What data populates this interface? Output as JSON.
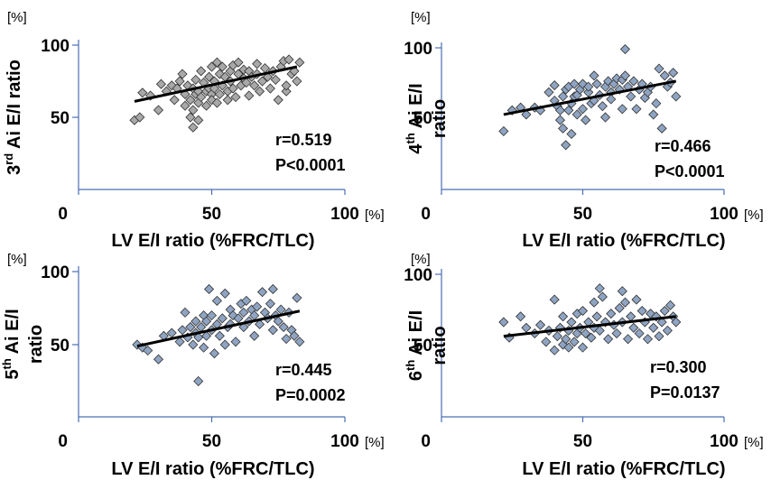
{
  "chart_data": [
    {
      "type": "scatter",
      "ylabel_main": "3",
      "ylabel_sup": "rd",
      "ylabel_rest": " Ai E/I ratio",
      "xlabel": "LV E/I ratio (%FRC/TLC)",
      "x_unit": "[%]",
      "y_unit": "[%]",
      "xlim": [
        0,
        100
      ],
      "ylim": [
        0,
        100
      ],
      "x_ticks": [
        0,
        50,
        100
      ],
      "y_ticks": [
        50,
        100
      ],
      "stat_r": "r=0.519",
      "stat_p": "P<0.0001",
      "marker_color": "#a8a8a8",
      "trend": [
        [
          21,
          61
        ],
        [
          82,
          85
        ]
      ],
      "points": [
        [
          21,
          48
        ],
        [
          23,
          50
        ],
        [
          24,
          67
        ],
        [
          27,
          65
        ],
        [
          30,
          55
        ],
        [
          31,
          73
        ],
        [
          33,
          68
        ],
        [
          35,
          72
        ],
        [
          36,
          62
        ],
        [
          37,
          70
        ],
        [
          38,
          75
        ],
        [
          39,
          80
        ],
        [
          40,
          66
        ],
        [
          40,
          58
        ],
        [
          41,
          72
        ],
        [
          42,
          62
        ],
        [
          42,
          50
        ],
        [
          43,
          55
        ],
        [
          43,
          70
        ],
        [
          43,
          43
        ],
        [
          44,
          66
        ],
        [
          44,
          76
        ],
        [
          45,
          68
        ],
        [
          45,
          48
        ],
        [
          45,
          60
        ],
        [
          46,
          64
        ],
        [
          46,
          82
        ],
        [
          47,
          74
        ],
        [
          48,
          68
        ],
        [
          48,
          58
        ],
        [
          49,
          70
        ],
        [
          49,
          78
        ],
        [
          50,
          66
        ],
        [
          50,
          85
        ],
        [
          50,
          62
        ],
        [
          51,
          70
        ],
        [
          51,
          75
        ],
        [
          52,
          88
        ],
        [
          52,
          60
        ],
        [
          53,
          80
        ],
        [
          53,
          66
        ],
        [
          54,
          72
        ],
        [
          54,
          85
        ],
        [
          55,
          78
        ],
        [
          56,
          68
        ],
        [
          56,
          62
        ],
        [
          57,
          82
        ],
        [
          57,
          75
        ],
        [
          58,
          86
        ],
        [
          58,
          70
        ],
        [
          59,
          64
        ],
        [
          60,
          80
        ],
        [
          60,
          88
        ],
        [
          61,
          72
        ],
        [
          62,
          77
        ],
        [
          62,
          83
        ],
        [
          63,
          74
        ],
        [
          64,
          65
        ],
        [
          64,
          82
        ],
        [
          65,
          78
        ],
        [
          66,
          72
        ],
        [
          67,
          87
        ],
        [
          67,
          80
        ],
        [
          68,
          68
        ],
        [
          69,
          75
        ],
        [
          70,
          84
        ],
        [
          71,
          78
        ],
        [
          72,
          70
        ],
        [
          73,
          82
        ],
        [
          74,
          76
        ],
        [
          75,
          62
        ],
        [
          76,
          85
        ],
        [
          77,
          89
        ],
        [
          78,
          68
        ],
        [
          78,
          72
        ],
        [
          79,
          90
        ],
        [
          80,
          80
        ],
        [
          81,
          82
        ],
        [
          82,
          75
        ],
        [
          83,
          88
        ]
      ]
    },
    {
      "type": "scatter",
      "ylabel_main": "4",
      "ylabel_sup": "th",
      "ylabel_rest": " Ai E/I",
      "ylabel_line2": "ratio",
      "xlabel": "LV E/I ratio (%FRC/TLC)",
      "x_unit": "[%]",
      "y_unit": "[%]",
      "xlim": [
        0,
        100
      ],
      "ylim": [
        0,
        100
      ],
      "x_ticks": [
        0,
        50,
        100
      ],
      "y_ticks": [
        50,
        100
      ],
      "stat_r": "r=0.466",
      "stat_p": "P<0.0001",
      "marker_color": "#8fa4c2",
      "trend": [
        [
          22,
          52
        ],
        [
          83,
          76
        ]
      ],
      "points": [
        [
          22,
          40
        ],
        [
          25,
          55
        ],
        [
          28,
          57
        ],
        [
          30,
          52
        ],
        [
          33,
          57
        ],
        [
          35,
          55
        ],
        [
          38,
          68
        ],
        [
          40,
          73
        ],
        [
          40,
          62
        ],
        [
          41,
          58
        ],
        [
          42,
          55
        ],
        [
          42,
          48
        ],
        [
          43,
          65
        ],
        [
          43,
          42
        ],
        [
          44,
          70
        ],
        [
          44,
          30
        ],
        [
          45,
          72
        ],
        [
          45,
          55
        ],
        [
          46,
          60
        ],
        [
          46,
          38
        ],
        [
          47,
          74
        ],
        [
          47,
          65
        ],
        [
          48,
          52
        ],
        [
          48,
          66
        ],
        [
          49,
          70
        ],
        [
          50,
          56
        ],
        [
          50,
          74
        ],
        [
          51,
          48
        ],
        [
          52,
          68
        ],
        [
          52,
          72
        ],
        [
          53,
          60
        ],
        [
          54,
          62
        ],
        [
          54,
          80
        ],
        [
          55,
          74
        ],
        [
          56,
          66
        ],
        [
          57,
          58
        ],
        [
          58,
          72
        ],
        [
          58,
          50
        ],
        [
          59,
          76
        ],
        [
          60,
          68
        ],
        [
          60,
          63
        ],
        [
          61,
          74
        ],
        [
          62,
          78
        ],
        [
          63,
          70
        ],
        [
          64,
          56
        ],
        [
          64,
          77
        ],
        [
          65,
          99
        ],
        [
          65,
          80
        ],
        [
          66,
          72
        ],
        [
          67,
          65
        ],
        [
          68,
          76
        ],
        [
          69,
          56
        ],
        [
          70,
          70
        ],
        [
          71,
          74
        ],
        [
          72,
          64
        ],
        [
          73,
          68
        ],
        [
          74,
          72
        ],
        [
          75,
          52
        ],
        [
          76,
          60
        ],
        [
          77,
          85
        ],
        [
          78,
          42
        ],
        [
          79,
          80
        ],
        [
          80,
          72
        ],
        [
          81,
          75
        ],
        [
          82,
          82
        ],
        [
          83,
          65
        ]
      ]
    },
    {
      "type": "scatter",
      "ylabel_main": "5",
      "ylabel_sup": "th",
      "ylabel_rest": " Ai E/I",
      "ylabel_line2": "ratio",
      "xlabel": "LV E/I ratio (%FRC/TLC)",
      "x_unit": "[%]",
      "y_unit": "[%]",
      "xlim": [
        0,
        100
      ],
      "ylim": [
        0,
        100
      ],
      "x_ticks": [
        0,
        50,
        100
      ],
      "y_ticks": [
        50,
        100
      ],
      "stat_r": "r=0.445",
      "stat_p": "P=0.0002",
      "marker_color": "#8fa4c2",
      "trend": [
        [
          22,
          49
        ],
        [
          83,
          73
        ]
      ],
      "points": [
        [
          22,
          50
        ],
        [
          24,
          48
        ],
        [
          26,
          46
        ],
        [
          30,
          40
        ],
        [
          32,
          56
        ],
        [
          35,
          58
        ],
        [
          38,
          52
        ],
        [
          39,
          60
        ],
        [
          40,
          72
        ],
        [
          41,
          55
        ],
        [
          42,
          62
        ],
        [
          43,
          50
        ],
        [
          44,
          66
        ],
        [
          44,
          58
        ],
        [
          45,
          25
        ],
        [
          45,
          55
        ],
        [
          46,
          62
        ],
        [
          47,
          70
        ],
        [
          47,
          48
        ],
        [
          48,
          66
        ],
        [
          48,
          56
        ],
        [
          49,
          88
        ],
        [
          50,
          60
        ],
        [
          50,
          70
        ],
        [
          51,
          44
        ],
        [
          52,
          64
        ],
        [
          52,
          80
        ],
        [
          53,
          56
        ],
        [
          54,
          68
        ],
        [
          55,
          50
        ],
        [
          55,
          85
        ],
        [
          56,
          62
        ],
        [
          57,
          74
        ],
        [
          57,
          64
        ],
        [
          58,
          70
        ],
        [
          59,
          52
        ],
        [
          60,
          68
        ],
        [
          61,
          78
        ],
        [
          62,
          62
        ],
        [
          62,
          72
        ],
        [
          63,
          80
        ],
        [
          64,
          66
        ],
        [
          65,
          74
        ],
        [
          66,
          56
        ],
        [
          66,
          70
        ],
        [
          67,
          76
        ],
        [
          68,
          64
        ],
        [
          69,
          86
        ],
        [
          70,
          72
        ],
        [
          71,
          68
        ],
        [
          72,
          78
        ],
        [
          73,
          60
        ],
        [
          73,
          88
        ],
        [
          74,
          70
        ],
        [
          75,
          66
        ],
        [
          76,
          74
        ],
        [
          77,
          62
        ],
        [
          78,
          54
        ],
        [
          79,
          72
        ],
        [
          80,
          60
        ],
        [
          81,
          56
        ],
        [
          82,
          82
        ],
        [
          83,
          52
        ]
      ]
    },
    {
      "type": "scatter",
      "ylabel_main": "6",
      "ylabel_sup": "th",
      "ylabel_rest": " Ai E/I",
      "ylabel_line2": "ratio",
      "xlabel": "LV E/I ratio (%FRC/TLC)",
      "x_unit": "[%]",
      "y_unit": "[%]",
      "xlim": [
        0,
        100
      ],
      "ylim": [
        0,
        100
      ],
      "x_ticks": [
        0,
        50,
        100
      ],
      "y_ticks": [
        50,
        100
      ],
      "stat_r": "r=0.300",
      "stat_p": "P=0.0137",
      "marker_color": "#8fa4c2",
      "trend": [
        [
          22,
          56
        ],
        [
          83,
          70
        ]
      ],
      "points": [
        [
          22,
          66
        ],
        [
          24,
          55
        ],
        [
          28,
          70
        ],
        [
          30,
          62
        ],
        [
          33,
          58
        ],
        [
          35,
          64
        ],
        [
          37,
          52
        ],
        [
          38,
          60
        ],
        [
          40,
          82
        ],
        [
          40,
          46
        ],
        [
          41,
          56
        ],
        [
          42,
          62
        ],
        [
          43,
          50
        ],
        [
          43,
          70
        ],
        [
          44,
          54
        ],
        [
          45,
          48
        ],
        [
          45,
          60
        ],
        [
          46,
          66
        ],
        [
          47,
          52
        ],
        [
          48,
          58
        ],
        [
          48,
          72
        ],
        [
          49,
          62
        ],
        [
          50,
          48
        ],
        [
          50,
          74
        ],
        [
          51,
          58
        ],
        [
          52,
          66
        ],
        [
          53,
          55
        ],
        [
          54,
          80
        ],
        [
          54,
          62
        ],
        [
          55,
          70
        ],
        [
          56,
          90
        ],
        [
          56,
          60
        ],
        [
          57,
          84
        ],
        [
          58,
          66
        ],
        [
          59,
          54
        ],
        [
          60,
          72
        ],
        [
          61,
          64
        ],
        [
          62,
          58
        ],
        [
          63,
          76
        ],
        [
          64,
          88
        ],
        [
          64,
          66
        ],
        [
          65,
          80
        ],
        [
          66,
          54
        ],
        [
          67,
          70
        ],
        [
          68,
          62
        ],
        [
          69,
          82
        ],
        [
          70,
          58
        ],
        [
          71,
          74
        ],
        [
          72,
          66
        ],
        [
          73,
          54
        ],
        [
          74,
          72
        ],
        [
          75,
          62
        ],
        [
          76,
          70
        ],
        [
          77,
          56
        ],
        [
          78,
          66
        ],
        [
          79,
          74
        ],
        [
          80,
          60
        ],
        [
          81,
          78
        ],
        [
          82,
          70
        ],
        [
          83,
          66
        ]
      ]
    }
  ]
}
